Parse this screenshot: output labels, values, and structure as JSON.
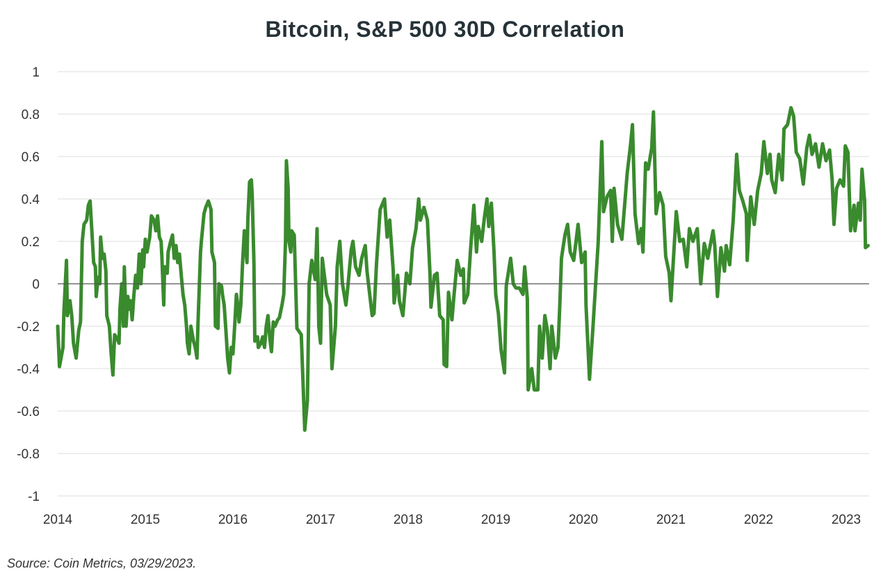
{
  "chart_data": {
    "type": "line",
    "title": "Bitcoin, S&P 500 30D Correlation",
    "xlabel": "",
    "ylabel": "",
    "xlim": [
      2014,
      2023.25
    ],
    "ylim": [
      -1,
      1
    ],
    "x_ticks": [
      "2014",
      "2015",
      "2016",
      "2017",
      "2018",
      "2019",
      "2020",
      "2021",
      "2022",
      "2023"
    ],
    "y_ticks": [
      "1",
      "0.8",
      "0.6",
      "0.4",
      "0.2",
      "0",
      "-0.2",
      "-0.4",
      "-0.6",
      "-0.8",
      "-1"
    ],
    "grid": true,
    "legend": "none",
    "line_color": "#3a8a2e",
    "series": [
      {
        "x": [
          2014.0,
          2014.02,
          2014.06,
          2014.07,
          2014.1,
          2014.11,
          2014.14,
          2014.16,
          2014.18,
          2014.21,
          2014.24,
          2014.26,
          2014.28,
          2014.3,
          2014.33,
          2014.35,
          2014.37,
          2014.39,
          2014.41,
          2014.43,
          2014.44,
          2014.46,
          2014.48,
          2014.49,
          2014.51,
          2014.53,
          2014.55,
          2014.56,
          2014.59,
          2014.61,
          2014.63,
          2014.65,
          2014.68,
          2014.7,
          2014.71,
          2014.73,
          2014.75,
          2014.76,
          2014.78,
          2014.8,
          2014.82,
          2014.83,
          2014.85,
          2014.87,
          2014.89,
          2014.91,
          2014.93,
          2014.95,
          2014.97,
          2014.98,
          2015.0,
          2015.02,
          2015.05,
          2015.07,
          2015.1,
          2015.12,
          2015.14,
          2015.16,
          2015.18,
          2015.19,
          2015.21,
          2015.22,
          2015.25,
          2015.26,
          2015.29,
          2015.31,
          2015.33,
          2015.35,
          2015.37,
          2015.39,
          2015.41,
          2015.43,
          2015.45,
          2015.47,
          2015.48,
          2015.5,
          2015.52,
          2015.55,
          2015.57,
          2015.59,
          2015.6,
          2015.63,
          2015.64,
          2015.67,
          2015.69,
          2015.72,
          2015.75,
          2015.76,
          2015.79,
          2015.8,
          2015.83,
          2015.84,
          2015.87,
          2015.88,
          2015.9,
          2015.92,
          2015.94,
          2015.96,
          2015.98,
          2016.0,
          2016.02,
          2016.04,
          2016.06,
          2016.07,
          2016.09,
          2016.11,
          2016.13,
          2016.16,
          2016.17,
          2016.19,
          2016.21,
          2016.22,
          2016.24,
          2016.25,
          2016.28,
          2016.29,
          2016.32,
          2016.34,
          2016.36,
          2016.38,
          2016.4,
          2016.42,
          2016.44,
          2016.46,
          2016.48,
          2016.51,
          2016.53,
          2016.56,
          2016.58,
          2016.6,
          2016.61,
          2016.63,
          2016.64,
          2016.66,
          2016.67,
          2016.7,
          2016.73,
          2016.78,
          2016.82,
          2016.85,
          2016.87,
          2016.9,
          2016.94,
          2016.96,
          2016.98,
          2017.0,
          2017.02,
          2017.07,
          2017.11,
          2017.13,
          2017.17,
          2017.19,
          2017.22,
          2017.25,
          2017.29,
          2017.31,
          2017.35,
          2017.37,
          2017.4,
          2017.44,
          2017.47,
          2017.51,
          2017.53,
          2017.59,
          2017.61,
          2017.64,
          2017.68,
          2017.73,
          2017.76,
          2017.79,
          2017.83,
          2017.84,
          2017.88,
          2017.9,
          2017.94,
          2017.98,
          2018.02,
          2018.05,
          2018.09,
          2018.12,
          2018.14,
          2018.18,
          2018.22,
          2018.25,
          2018.26,
          2018.3,
          2018.33,
          2018.36,
          2018.4,
          2018.41,
          2018.44,
          2018.46,
          2018.5,
          2018.52,
          2018.56,
          2018.6,
          2018.63,
          2018.64,
          2018.68,
          2018.71,
          2018.75,
          2018.78,
          2018.8,
          2018.84,
          2018.87,
          2018.9,
          2018.92,
          2018.95,
          2018.98,
          2019.0,
          2019.03,
          2019.06,
          2019.1,
          2019.12,
          2019.15,
          2019.17,
          2019.2,
          2019.23,
          2019.27,
          2019.31,
          2019.33,
          2019.36,
          2019.37,
          2019.41,
          2019.44,
          2019.48,
          2019.5,
          2019.53,
          2019.56,
          2019.59,
          2019.62,
          2019.64,
          2019.68,
          2019.71,
          2019.73,
          2019.75,
          2019.79,
          2019.82,
          2019.85,
          2019.89,
          2019.94,
          2019.98,
          2020.02,
          2020.03,
          2020.07,
          2020.11,
          2020.17,
          2020.21,
          2020.23,
          2020.27,
          2020.31,
          2020.33,
          2020.35,
          2020.39,
          2020.44,
          2020.5,
          2020.54,
          2020.56,
          2020.59,
          2020.63,
          2020.66,
          2020.68,
          2020.71,
          2020.74,
          2020.78,
          2020.8,
          2020.83,
          2020.87,
          2020.91,
          2020.94,
          2020.98,
          2021.0,
          2021.02,
          2021.06,
          2021.1,
          2021.14,
          2021.18,
          2021.21,
          2021.25,
          2021.3,
          2021.34,
          2021.38,
          2021.42,
          2021.48,
          2021.5,
          2021.53,
          2021.57,
          2021.61,
          2021.63,
          2021.67,
          2021.71,
          2021.75,
          2021.78,
          2021.82,
          2021.86,
          2021.87,
          2021.91,
          2021.95,
          2021.99,
          2022.03,
          2022.06,
          2022.1,
          2022.13,
          2022.15,
          2022.19,
          2022.23,
          2022.27,
          2022.29,
          2022.33,
          2022.37,
          2022.4,
          2022.43,
          2022.47,
          2022.51,
          2022.55,
          2022.58,
          2022.61,
          2022.65,
          2022.69,
          2022.73,
          2022.77,
          2022.81,
          2022.84,
          2022.86,
          2022.89,
          2022.93,
          2022.97,
          2022.99,
          2023.02,
          2023.05,
          2023.09,
          2023.1,
          2023.14,
          2023.16,
          2023.18,
          2023.21,
          2023.22,
          2023.25
        ],
        "y": [
          -0.2,
          -0.39,
          -0.3,
          -0.14,
          0.11,
          -0.15,
          -0.08,
          -0.15,
          -0.28,
          -0.35,
          -0.22,
          -0.18,
          0.2,
          0.28,
          0.3,
          0.37,
          0.39,
          0.25,
          0.1,
          0.08,
          -0.06,
          0.03,
          0.0,
          0.22,
          0.12,
          0.14,
          0.06,
          -0.15,
          -0.2,
          -0.33,
          -0.43,
          -0.24,
          -0.26,
          -0.28,
          -0.12,
          0.0,
          -0.2,
          0.08,
          -0.2,
          -0.06,
          -0.12,
          -0.08,
          -0.17,
          -0.05,
          0.04,
          -0.02,
          0.14,
          0.0,
          0.16,
          0.08,
          0.21,
          0.15,
          0.22,
          0.32,
          0.3,
          0.25,
          0.32,
          0.22,
          0.2,
          0.12,
          -0.1,
          0.08,
          0.05,
          0.15,
          0.2,
          0.23,
          0.12,
          0.18,
          0.1,
          0.14,
          0.04,
          -0.05,
          -0.1,
          -0.2,
          -0.28,
          -0.33,
          -0.2,
          -0.27,
          -0.3,
          -0.35,
          -0.2,
          0.15,
          0.2,
          0.33,
          0.36,
          0.39,
          0.35,
          0.15,
          0.1,
          -0.2,
          -0.21,
          0.0,
          -0.01,
          -0.05,
          -0.1,
          -0.22,
          -0.35,
          -0.42,
          -0.3,
          -0.33,
          -0.2,
          -0.05,
          -0.12,
          -0.18,
          -0.1,
          0.1,
          0.25,
          0.1,
          0.3,
          0.48,
          0.49,
          0.42,
          0.1,
          -0.27,
          -0.25,
          -0.3,
          -0.28,
          -0.25,
          -0.3,
          -0.2,
          -0.15,
          -0.25,
          -0.32,
          -0.18,
          -0.2,
          -0.17,
          -0.16,
          -0.1,
          -0.05,
          0.2,
          0.58,
          0.45,
          0.2,
          0.15,
          0.25,
          0.23,
          -0.21,
          -0.24,
          -0.69,
          -0.55,
          0.0,
          0.11,
          0.02,
          0.26,
          -0.2,
          -0.28,
          0.12,
          -0.05,
          -0.1,
          -0.4,
          -0.2,
          0.08,
          0.2,
          0.0,
          -0.1,
          -0.02,
          0.16,
          0.2,
          0.08,
          0.04,
          0.12,
          0.18,
          0.06,
          -0.15,
          -0.14,
          0.1,
          0.35,
          0.4,
          0.22,
          0.3,
          0.06,
          -0.09,
          0.04,
          -0.08,
          -0.15,
          0.05,
          0.0,
          0.17,
          0.26,
          0.4,
          0.3,
          0.36,
          0.3,
          0.04,
          -0.11,
          0.04,
          0.05,
          -0.15,
          -0.17,
          -0.38,
          -0.39,
          -0.04,
          -0.17,
          -0.07,
          0.11,
          0.04,
          0.07,
          -0.09,
          -0.05,
          0.15,
          0.37,
          0.15,
          0.27,
          0.2,
          0.31,
          0.4,
          0.27,
          0.38,
          0.15,
          -0.05,
          -0.14,
          -0.31,
          -0.42,
          -0.01,
          0.07,
          0.12,
          0.0,
          -0.02,
          -0.02,
          -0.05,
          0.08,
          -0.07,
          -0.5,
          -0.4,
          -0.5,
          -0.5,
          -0.2,
          -0.35,
          -0.15,
          -0.22,
          -0.4,
          -0.2,
          -0.35,
          -0.3,
          -0.11,
          0.12,
          0.23,
          0.28,
          0.15,
          0.11,
          0.28,
          0.1,
          0.15,
          -0.1,
          -0.45,
          -0.2,
          0.2,
          0.67,
          0.34,
          0.41,
          0.44,
          0.2,
          0.45,
          0.28,
          0.21,
          0.52,
          0.66,
          0.75,
          0.33,
          0.19,
          0.26,
          0.15,
          0.57,
          0.54,
          0.64,
          0.81,
          0.33,
          0.43,
          0.37,
          0.13,
          0.05,
          -0.08,
          0.06,
          0.34,
          0.2,
          0.21,
          0.08,
          0.26,
          0.2,
          0.26,
          0.0,
          0.19,
          0.12,
          0.25,
          0.18,
          -0.06,
          0.17,
          0.06,
          0.18,
          0.09,
          0.3,
          0.61,
          0.44,
          0.39,
          0.33,
          0.11,
          0.41,
          0.28,
          0.44,
          0.52,
          0.67,
          0.52,
          0.61,
          0.49,
          0.43,
          0.61,
          0.49,
          0.73,
          0.75,
          0.83,
          0.79,
          0.62,
          0.59,
          0.47,
          0.64,
          0.7,
          0.61,
          0.66,
          0.55,
          0.66,
          0.58,
          0.63,
          0.49,
          0.28,
          0.45,
          0.49,
          0.46,
          0.65,
          0.62,
          0.25,
          0.37,
          0.25,
          0.38,
          0.3,
          0.54,
          0.39,
          0.17,
          0.18
        ]
      }
    ],
    "source": "Source: Coin Metrics, 03/29/2023."
  }
}
